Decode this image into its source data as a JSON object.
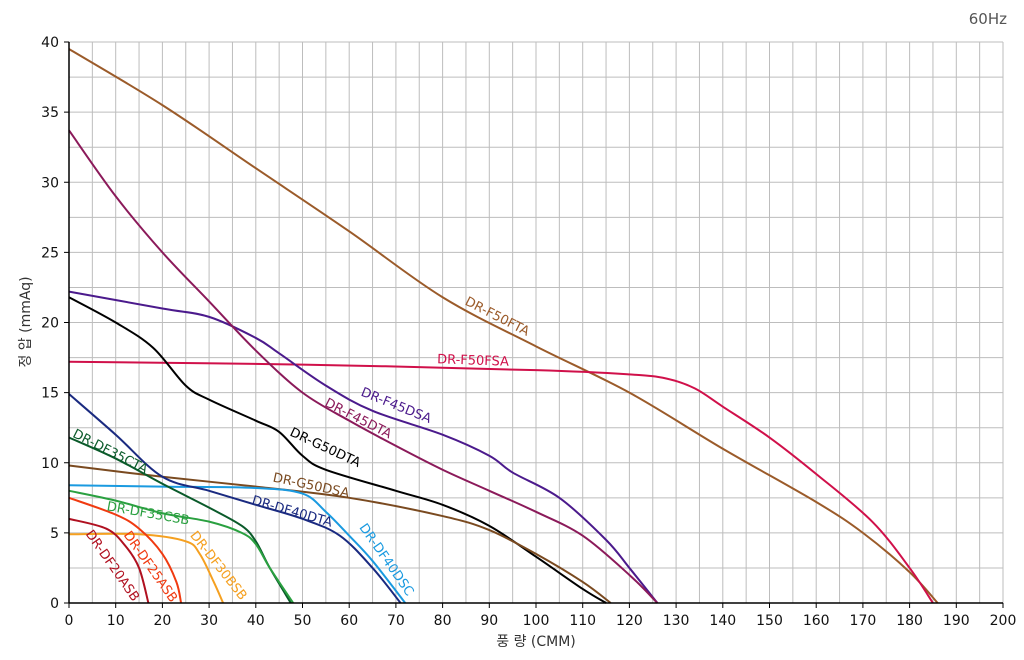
{
  "chart_data": {
    "type": "line",
    "title": "60Hz",
    "xlabel": "풍 량 (CMM)",
    "ylabel": "정 압 (mmAq)",
    "xlim": [
      0,
      200
    ],
    "ylim": [
      0,
      40
    ],
    "xticks": [
      0,
      10,
      20,
      30,
      40,
      50,
      60,
      70,
      80,
      90,
      100,
      110,
      120,
      130,
      140,
      150,
      160,
      170,
      180,
      190,
      200
    ],
    "yticks": [
      0,
      5,
      10,
      15,
      20,
      25,
      30,
      35,
      40
    ],
    "grid": true,
    "series": [
      {
        "name": "DR-F50FTA",
        "color": "#9b5b2a",
        "points": [
          [
            0,
            39.5
          ],
          [
            20,
            35.5
          ],
          [
            40,
            31
          ],
          [
            60,
            26.5
          ],
          [
            80,
            21.8
          ],
          [
            100,
            18.3
          ],
          [
            120,
            15
          ],
          [
            140,
            11
          ],
          [
            160,
            7.2
          ],
          [
            170,
            5
          ],
          [
            180,
            2.2
          ],
          [
            186,
            0
          ]
        ]
      },
      {
        "name": "DR-F50FSA",
        "color": "#d0104a",
        "points": [
          [
            0,
            17.2
          ],
          [
            50,
            17
          ],
          [
            100,
            16.6
          ],
          [
            120,
            16.3
          ],
          [
            128,
            16
          ],
          [
            134,
            15.3
          ],
          [
            140,
            14
          ],
          [
            150,
            11.8
          ],
          [
            160,
            9.2
          ],
          [
            172,
            5.8
          ],
          [
            180,
            2.5
          ],
          [
            185,
            0
          ]
        ]
      },
      {
        "name": "DR-F45DSA",
        "color": "#4b1a8c",
        "points": [
          [
            0,
            22.2
          ],
          [
            20,
            21
          ],
          [
            30,
            20.4
          ],
          [
            40,
            18.9
          ],
          [
            45,
            17.8
          ],
          [
            55,
            15.5
          ],
          [
            65,
            13.7
          ],
          [
            80,
            12
          ],
          [
            90,
            10.5
          ],
          [
            95,
            9.3
          ],
          [
            105,
            7.5
          ],
          [
            115,
            4.5
          ],
          [
            120,
            2.5
          ],
          [
            126,
            0
          ]
        ]
      },
      {
        "name": "DR-F45DTA",
        "color": "#8b1a5a",
        "points": [
          [
            0,
            33.7
          ],
          [
            10,
            29
          ],
          [
            20,
            25
          ],
          [
            30,
            21.5
          ],
          [
            40,
            18
          ],
          [
            50,
            15
          ],
          [
            60,
            13
          ],
          [
            70,
            11.2
          ],
          [
            80,
            9.5
          ],
          [
            90,
            8
          ],
          [
            100,
            6.5
          ],
          [
            110,
            4.8
          ],
          [
            120,
            2
          ],
          [
            126,
            0
          ]
        ]
      },
      {
        "name": "DR-G50DTA",
        "color": "#000000",
        "points": [
          [
            0,
            21.8
          ],
          [
            10,
            20
          ],
          [
            18,
            18.2
          ],
          [
            25,
            15.5
          ],
          [
            30,
            14.5
          ],
          [
            40,
            13
          ],
          [
            45,
            12.2
          ],
          [
            50,
            10.5
          ],
          [
            55,
            9.5
          ],
          [
            70,
            8
          ],
          [
            80,
            7
          ],
          [
            90,
            5.5
          ],
          [
            100,
            3.3
          ],
          [
            110,
            1
          ],
          [
            115,
            0
          ]
        ]
      },
      {
        "name": "DR-G50DSA",
        "color": "#7a4a20",
        "points": [
          [
            0,
            9.8
          ],
          [
            20,
            9
          ],
          [
            40,
            8.3
          ],
          [
            60,
            7.5
          ],
          [
            80,
            6.2
          ],
          [
            90,
            5.2
          ],
          [
            100,
            3.5
          ],
          [
            110,
            1.5
          ],
          [
            116,
            0
          ]
        ]
      },
      {
        "name": "DR-DF40DSC",
        "color": "#1a9ae0",
        "points": [
          [
            0,
            8.4
          ],
          [
            20,
            8.3
          ],
          [
            40,
            8.2
          ],
          [
            50,
            7.8
          ],
          [
            55,
            6.5
          ],
          [
            60,
            4.8
          ],
          [
            65,
            3
          ],
          [
            72,
            0
          ]
        ]
      },
      {
        "name": "DR-DF40DTA",
        "color": "#1a2a80",
        "points": [
          [
            0,
            14.9
          ],
          [
            10,
            12
          ],
          [
            20,
            9
          ],
          [
            30,
            8
          ],
          [
            40,
            7
          ],
          [
            50,
            6
          ],
          [
            58,
            4.8
          ],
          [
            65,
            2.5
          ],
          [
            71,
            0
          ]
        ]
      },
      {
        "name": "DR-DF35CTA",
        "color": "#0a5a2a",
        "points": [
          [
            0,
            11.8
          ],
          [
            10,
            10.3
          ],
          [
            20,
            8.5
          ],
          [
            30,
            6.8
          ],
          [
            37,
            5.5
          ],
          [
            40,
            4.4
          ],
          [
            43,
            2.5
          ],
          [
            47.5,
            0
          ]
        ]
      },
      {
        "name": "DR-DF35CSB",
        "color": "#2aa040",
        "points": [
          [
            0,
            8
          ],
          [
            10,
            7.3
          ],
          [
            20,
            6.4
          ],
          [
            30,
            5.8
          ],
          [
            37,
            5
          ],
          [
            40,
            4.2
          ],
          [
            43,
            2.5
          ],
          [
            48,
            0
          ]
        ]
      },
      {
        "name": "DR-DF30BSB",
        "color": "#f5a020",
        "points": [
          [
            0,
            4.9
          ],
          [
            15,
            4.9
          ],
          [
            25,
            4.4
          ],
          [
            28,
            3.5
          ],
          [
            31,
            1.5
          ],
          [
            33,
            0
          ]
        ]
      },
      {
        "name": "DR-DF25ASB",
        "color": "#f03a10",
        "points": [
          [
            0,
            7.5
          ],
          [
            10,
            6.3
          ],
          [
            15,
            5.3
          ],
          [
            20,
            3.5
          ],
          [
            23,
            1.5
          ],
          [
            24,
            0
          ]
        ]
      },
      {
        "name": "DR-DF20ASB",
        "color": "#b01020",
        "points": [
          [
            0,
            6
          ],
          [
            8,
            5.3
          ],
          [
            12,
            4.1
          ],
          [
            15,
            2.5
          ],
          [
            17,
            0
          ]
        ]
      }
    ]
  }
}
